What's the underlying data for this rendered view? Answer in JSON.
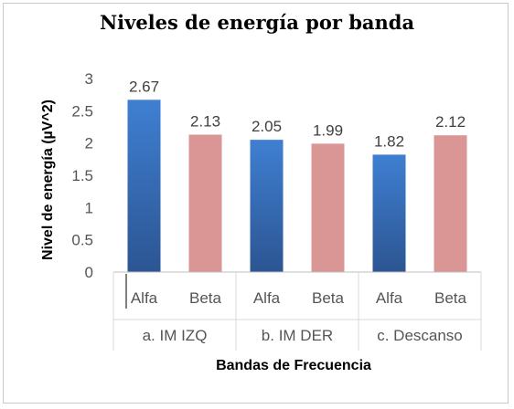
{
  "chart_data": {
    "type": "bar",
    "title": "Niveles de energía por banda",
    "xlabel": "Bandas de Frecuencia",
    "ylabel": "Nivel de energía (µV^2)",
    "ylim": [
      0,
      3
    ],
    "yticks": [
      "0",
      "0.5",
      "1",
      "1.5",
      "2",
      "2.5",
      "3"
    ],
    "groups": [
      "a. IM IZQ",
      "b. IM DER",
      "c. Descanso"
    ],
    "bands": [
      "Alfa",
      "Beta"
    ],
    "values": [
      2.67,
      2.13,
      2.05,
      1.99,
      1.82,
      2.12
    ],
    "value_labels": [
      "2.67",
      "2.13",
      "2.05",
      "1.99",
      "1.82",
      "2.12"
    ],
    "colors": {
      "Alfa": "#3a6fb8",
      "Beta": "#d99694"
    },
    "grid": false,
    "legend": "none"
  }
}
